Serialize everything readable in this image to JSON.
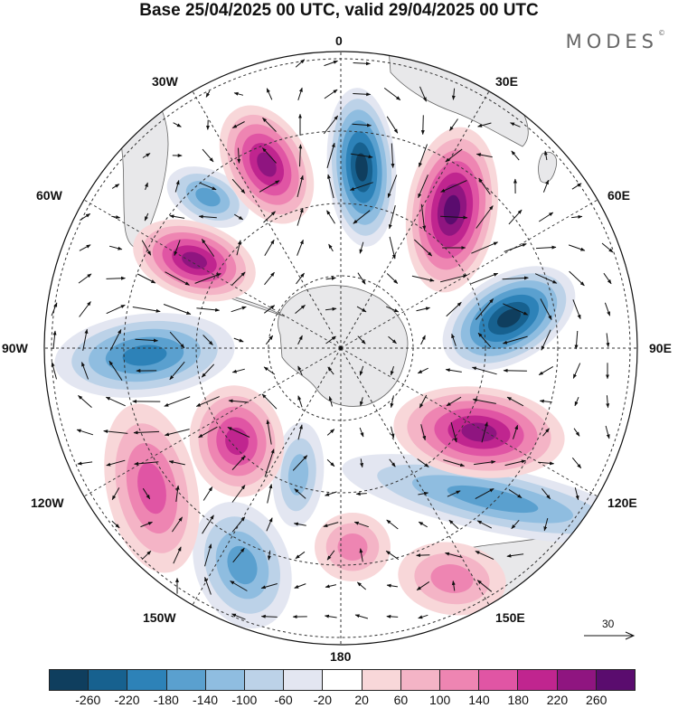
{
  "title": "Base 25/04/2025 00 UTC, valid 29/04/2025 00 UTC",
  "brand": {
    "name": "MODES",
    "mark": "©"
  },
  "longitude_labels": {
    "deg0": "0",
    "deg30e": "30E",
    "deg60e": "60E",
    "deg90e": "90E",
    "deg120e": "120E",
    "deg150e": "150E",
    "deg180": "180",
    "deg150w": "150W",
    "deg120w": "120W",
    "deg90w": "90W",
    "deg60w": "60W",
    "deg30w": "30W"
  },
  "reference_vector": {
    "value": "30"
  },
  "colorbar": {
    "colors": [
      "#0f3e5e",
      "#17618f",
      "#2d82b8",
      "#5aa0cf",
      "#8fbde0",
      "#bcd2e8",
      "#e3e6f1",
      "#ffffff",
      "#f8d7d9",
      "#f4b4c6",
      "#ee85b2",
      "#e055a4",
      "#c0258f",
      "#8f1580",
      "#5a0c6e"
    ],
    "labels": [
      "-260",
      "-220",
      "-180",
      "-140",
      "-100",
      "-60",
      "-20",
      "20",
      "60",
      "100",
      "140",
      "180",
      "220",
      "260"
    ]
  },
  "anomaly_lobes": [
    {
      "sign": "negative",
      "peak": "-240"
    },
    {
      "sign": "negative",
      "peak": "-230"
    },
    {
      "sign": "negative",
      "peak": "-180"
    },
    {
      "sign": "negative",
      "peak": "-140"
    },
    {
      "sign": "negative",
      "peak": "-120"
    },
    {
      "sign": "negative",
      "peak": "-110"
    },
    {
      "sign": "negative",
      "peak": "-100"
    },
    {
      "sign": "positive",
      "peak": "260"
    },
    {
      "sign": "positive",
      "peak": "210"
    },
    {
      "sign": "positive",
      "peak": "200"
    },
    {
      "sign": "positive",
      "peak": "190"
    },
    {
      "sign": "positive",
      "peak": "180"
    },
    {
      "sign": "positive",
      "peak": "120"
    },
    {
      "sign": "positive",
      "peak": "100"
    },
    {
      "sign": "positive",
      "peak": "80"
    }
  ]
}
